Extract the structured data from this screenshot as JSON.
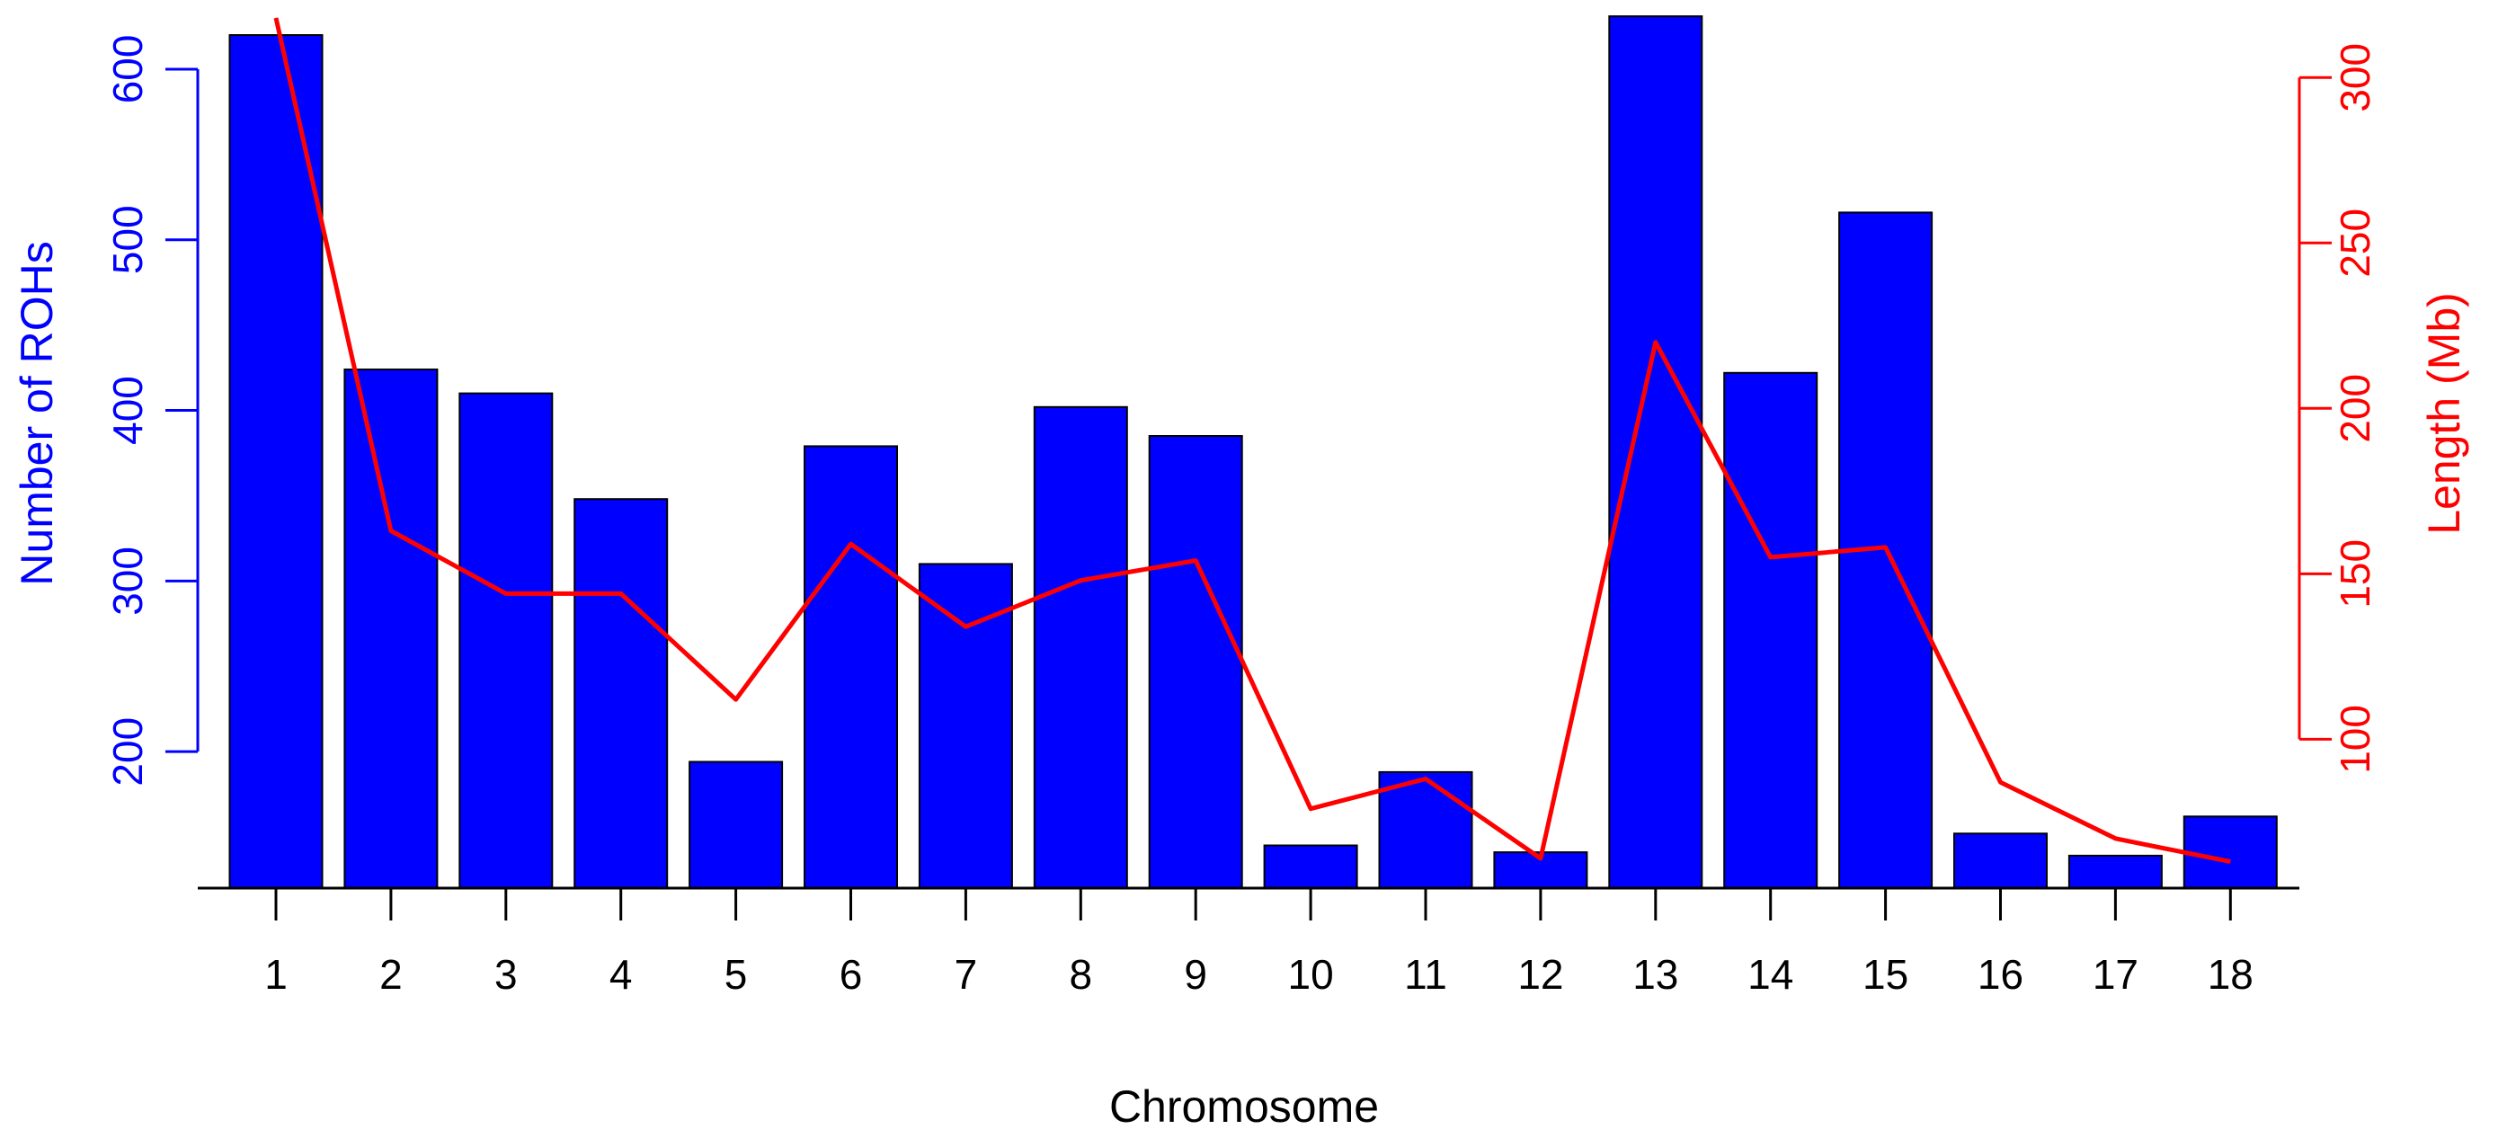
{
  "chart_data": {
    "type": "bar",
    "categories": [
      "1",
      "2",
      "3",
      "4",
      "5",
      "6",
      "7",
      "8",
      "9",
      "10",
      "11",
      "12",
      "13",
      "14",
      "15",
      "16",
      "17",
      "18"
    ],
    "xlabel": "Chromosome",
    "series": [
      {
        "name": "Number of ROHs",
        "type": "bar",
        "axis": "left",
        "values": [
          620,
          424,
          410,
          348,
          194,
          379,
          310,
          402,
          385,
          145,
          188,
          141,
          631,
          422,
          516,
          152,
          139,
          162
        ]
      },
      {
        "name": "Length (Mb)",
        "type": "line",
        "axis": "right",
        "values": [
          318,
          163,
          144,
          144,
          112,
          159,
          134,
          148,
          154,
          79,
          88,
          64,
          220,
          155,
          158,
          87,
          70,
          63
        ]
      }
    ],
    "y_left": {
      "label": "Number of ROHs",
      "ylim": [
        120,
        630
      ],
      "ticks": [
        200,
        300,
        400,
        500,
        600
      ],
      "color": "#0000ff"
    },
    "y_right": {
      "label": "Length (Mb)",
      "ylim": [
        55,
        318
      ],
      "ticks": [
        100,
        150,
        200,
        250,
        300
      ],
      "color": "#ff0000"
    },
    "bar_color": "#0000ff",
    "line_color": "#ff0000",
    "grid": false,
    "legend": "none"
  }
}
